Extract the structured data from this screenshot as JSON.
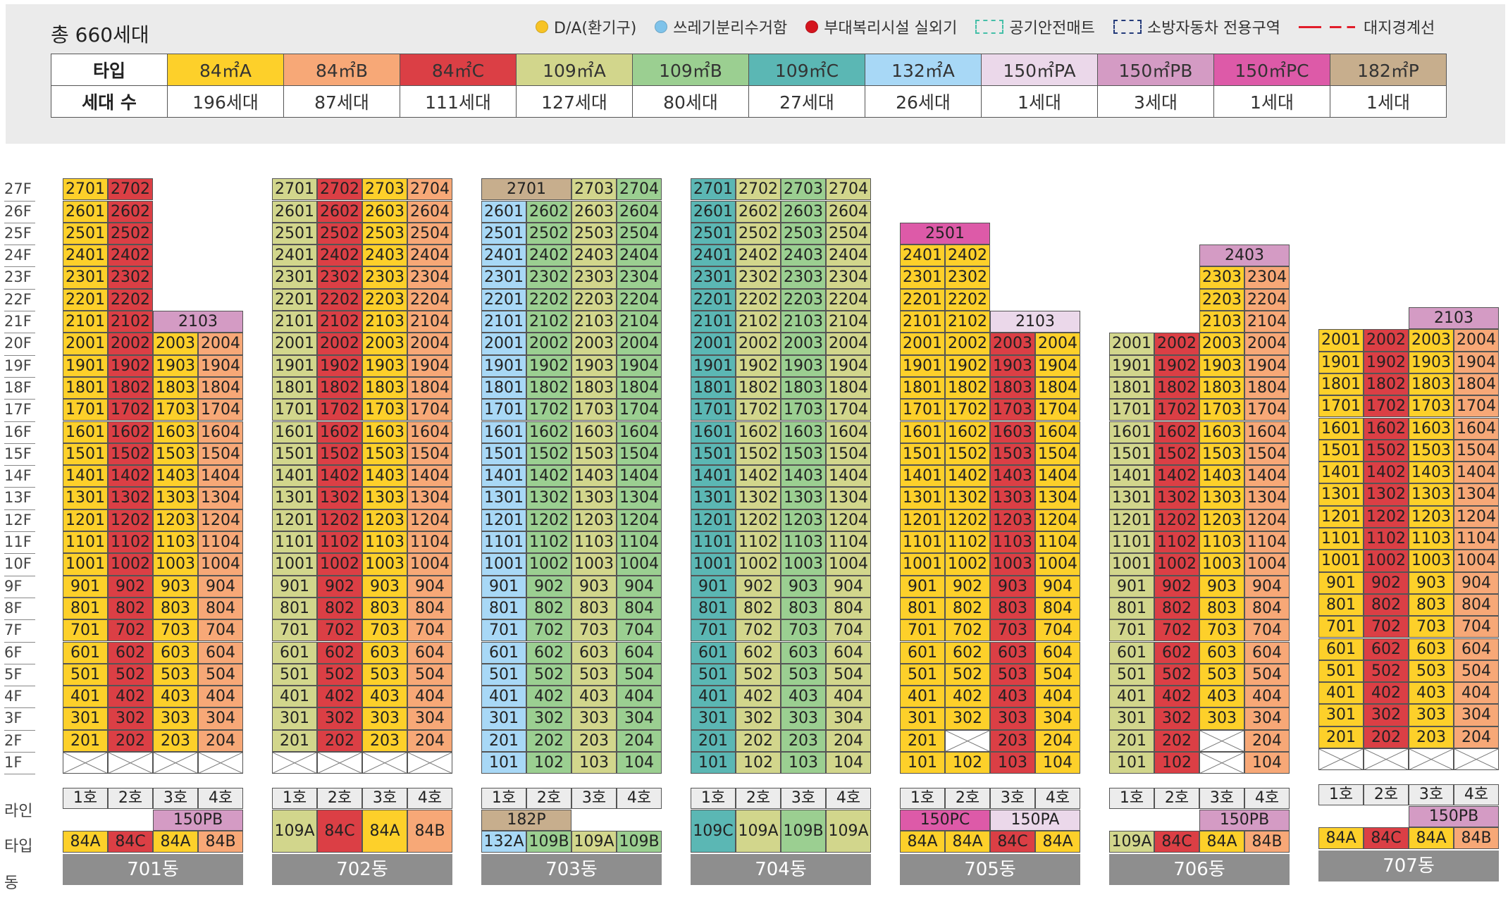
{
  "title": "총 660세대",
  "legend": [
    {
      "label": "D/A(환기구)",
      "kind": "dot",
      "color": "#f7c325"
    },
    {
      "label": "쓰레기분리수거함",
      "kind": "dot",
      "color": "#7fc3ea"
    },
    {
      "label": "부대복리시설 실외기",
      "kind": "dot",
      "color": "#d4151e"
    },
    {
      "label": "공기안전매트",
      "kind": "dash",
      "color": "#45bfa8"
    },
    {
      "label": "소방자동차 전용구역",
      "kind": "dash",
      "color": "#243b7a"
    },
    {
      "label": "대지경계선",
      "kind": "line",
      "color": "#e11d2a"
    }
  ],
  "type_table": {
    "type_header": "타입",
    "count_header": "세대 수",
    "types": [
      {
        "key": "84A",
        "label": "84㎡A",
        "count": "196세대",
        "color": "#fdd02a"
      },
      {
        "key": "84B",
        "label": "84㎡B",
        "count": "87세대",
        "color": "#f7a877"
      },
      {
        "key": "84C",
        "label": "84㎡C",
        "count": "111세대",
        "color": "#db3f45"
      },
      {
        "key": "109A",
        "label": "109㎡A",
        "count": "127세대",
        "color": "#d2d68c"
      },
      {
        "key": "109B",
        "label": "109㎡B",
        "count": "80세대",
        "color": "#9bcf91"
      },
      {
        "key": "109C",
        "label": "109㎡C",
        "count": "27세대",
        "color": "#5bb7b4"
      },
      {
        "key": "132A",
        "label": "132㎡A",
        "count": "26세대",
        "color": "#a8d8f6"
      },
      {
        "key": "150PA",
        "label": "150㎡PA",
        "count": "1세대",
        "color": "#ebd8ea"
      },
      {
        "key": "150PB",
        "label": "150㎡PB",
        "count": "3세대",
        "color": "#d49bc4"
      },
      {
        "key": "150PC",
        "label": "150㎡PC",
        "count": "1세대",
        "color": "#dd5aa8"
      },
      {
        "key": "182P",
        "label": "182㎡P",
        "count": "1세대",
        "color": "#c7ae8d"
      }
    ]
  },
  "row_labels": {
    "line": "라인",
    "type": "타입",
    "dong": "동"
  },
  "floors": [
    "27F",
    "26F",
    "25F",
    "24F",
    "23F",
    "22F",
    "21F",
    "20F",
    "19F",
    "18F",
    "17F",
    "16F",
    "15F",
    "14F",
    "13F",
    "12F",
    "11F",
    "10F",
    "9F",
    "8F",
    "7F",
    "6F",
    "5F",
    "4F",
    "3F",
    "2F",
    "1F"
  ],
  "buildings": [
    {
      "name": "701동",
      "lines": [
        "1호",
        "2호",
        "3호",
        "4호"
      ],
      "types": [
        "84A",
        "84C",
        "84A",
        "84B"
      ],
      "roof": {
        "floor": 21,
        "span": [
          3,
          4
        ],
        "type": "150PB",
        "unit": "2103"
      },
      "heights": [
        27,
        27,
        20,
        20
      ],
      "blank": {
        "1": [
          1,
          2,
          3,
          4
        ]
      },
      "type_row_special": [
        {
          "span": [
            3,
            4
          ],
          "type": "150PB",
          "label": "150PB"
        }
      ]
    },
    {
      "name": "702동",
      "lines": [
        "1호",
        "2호",
        "3호",
        "4호"
      ],
      "types": [
        "109A",
        "84C",
        "84A",
        "84B"
      ],
      "heights": [
        27,
        27,
        27,
        27
      ],
      "blank": {
        "1": [
          1,
          2,
          3,
          4
        ]
      }
    },
    {
      "name": "703동",
      "lines": [
        "1호",
        "2호",
        "3호",
        "4호"
      ],
      "types": [
        "132A",
        "109B",
        "109A",
        "109B"
      ],
      "roof": {
        "floor": 27,
        "span": [
          1,
          2
        ],
        "type": "182P",
        "unit": "2701"
      },
      "heights": [
        26,
        26,
        27,
        27
      ],
      "type_row_special": [
        {
          "span": [
            1,
            2
          ],
          "type": "182P",
          "label": "182P"
        }
      ]
    },
    {
      "name": "704동",
      "lines": [
        "1호",
        "2호",
        "3호",
        "4호"
      ],
      "types": [
        "109C",
        "109A",
        "109B",
        "109A"
      ],
      "heights": [
        27,
        27,
        27,
        27
      ]
    },
    {
      "name": "705동",
      "lines": [
        "1호",
        "2호",
        "3호",
        "4호"
      ],
      "types": [
        "84A",
        "84A",
        "84C",
        "84A"
      ],
      "roof": [
        {
          "floor": 25,
          "span": [
            1,
            2
          ],
          "type": "150PC",
          "unit": "2501"
        },
        {
          "floor": 21,
          "span": [
            3,
            4
          ],
          "type": "150PA",
          "unit": "2103"
        }
      ],
      "heights": [
        24,
        24,
        20,
        20
      ],
      "blank": {
        "2": [
          2
        ]
      },
      "type_row_special": [
        {
          "span": [
            1,
            2
          ],
          "type": "150PC",
          "label": "150PC"
        },
        {
          "span": [
            3,
            4
          ],
          "type": "150PA",
          "label": "150PA"
        }
      ]
    },
    {
      "name": "706동",
      "lines": [
        "1호",
        "2호",
        "3호",
        "4호"
      ],
      "types": [
        "109A",
        "84C",
        "84A",
        "84B"
      ],
      "roof": {
        "floor": 24,
        "span": [
          3,
          4
        ],
        "type": "150PB",
        "unit": "2403"
      },
      "heights": [
        20,
        20,
        23,
        23
      ],
      "blank": {
        "1": [
          3
        ],
        "2": [
          3
        ]
      },
      "type_row_special": [
        {
          "span": [
            3,
            4
          ],
          "type": "150PB",
          "label": "150PB"
        }
      ]
    },
    {
      "name": "707동",
      "lines": [
        "1호",
        "2호",
        "3호",
        "4호"
      ],
      "types": [
        "84A",
        "84C",
        "84A",
        "84B"
      ],
      "roof": {
        "floor": 21,
        "span": [
          3,
          4
        ],
        "type": "150PB",
        "unit": "2103"
      },
      "heights": [
        20,
        20,
        20,
        20
      ],
      "blank": {
        "1": [
          1,
          2,
          3,
          4
        ]
      },
      "type_row_special": [
        {
          "span": [
            3,
            4
          ],
          "type": "150PB",
          "label": "150PB"
        }
      ]
    }
  ]
}
